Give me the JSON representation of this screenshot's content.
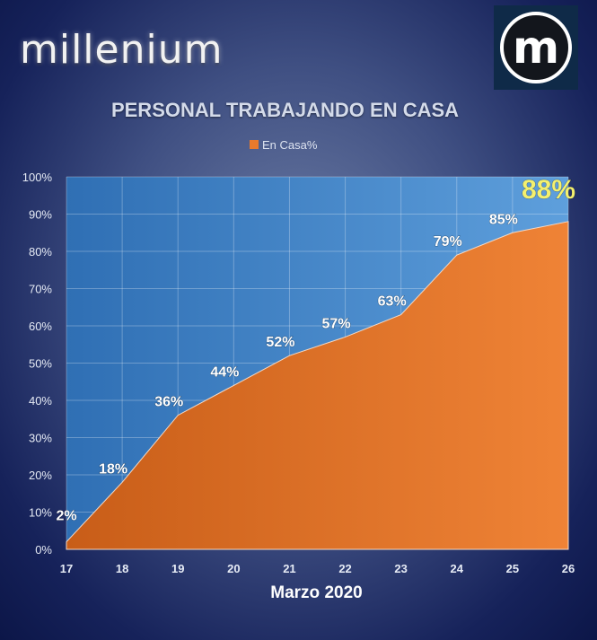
{
  "brand": {
    "name": "millenium",
    "logo_letter": "m"
  },
  "chart_data": {
    "type": "area",
    "title": "PERSONAL TRABAJANDO EN CASA",
    "xlabel": "Marzo 2020",
    "ylabel": "",
    "x": [
      17,
      18,
      19,
      20,
      21,
      22,
      23,
      24,
      25,
      26
    ],
    "series": [
      {
        "name": "En Casa%",
        "values": [
          2,
          18,
          36,
          44,
          52,
          57,
          63,
          79,
          85,
          88
        ]
      }
    ],
    "data_labels": [
      "2%",
      "18%",
      "36%",
      "44%",
      "52%",
      "57%",
      "63%",
      "79%",
      "85%",
      "88%"
    ],
    "yticks": [
      "0%",
      "10%",
      "20%",
      "30%",
      "40%",
      "50%",
      "60%",
      "70%",
      "80%",
      "90%",
      "100%"
    ],
    "ylim": [
      0,
      100
    ],
    "grid": true,
    "legend": "top-center",
    "colors": {
      "area": "#e97a2c",
      "plot_bg": "#3f86c9",
      "highlight_label": "#f4f06e"
    }
  }
}
